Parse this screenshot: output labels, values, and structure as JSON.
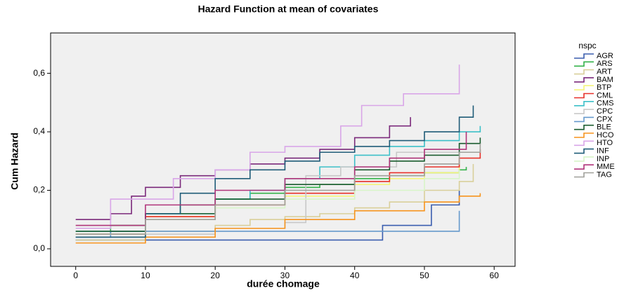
{
  "chart_data": {
    "type": "step",
    "title": "Hazard Function at mean of covariates",
    "x_label": "durée chomage",
    "y_label": "Cum Hazard",
    "legend_title": "nspc",
    "legend_position": "right",
    "xlim": [
      -3.6,
      63
    ],
    "ylim": [
      -0.06,
      0.738
    ],
    "xticks": [
      0,
      10,
      20,
      30,
      40,
      50,
      60
    ],
    "yticks": [
      {
        "value": 0,
        "label": "0,0"
      },
      {
        "value": 0.2,
        "label": "0,2"
      },
      {
        "value": 0.4,
        "label": "0,4"
      },
      {
        "value": 0.6,
        "label": "0,6"
      }
    ],
    "series": [
      {
        "name": "AGR",
        "color": "#3a5dae",
        "x": [
          0,
          44,
          51,
          55
        ],
        "values": [
          0.03,
          0.08,
          0.15,
          0.2
        ]
      },
      {
        "name": "ARS",
        "color": "#33b24a",
        "x": [
          0,
          5,
          10,
          15,
          20,
          25,
          30,
          35,
          40,
          45,
          50,
          55,
          56
        ],
        "values": [
          0.05,
          0.08,
          0.12,
          0.15,
          0.17,
          0.19,
          0.21,
          0.22,
          0.24,
          0.25,
          0.26,
          0.27,
          0.28
        ]
      },
      {
        "name": "ART",
        "color": "#d9cf9a",
        "x": [
          0,
          10,
          20,
          25,
          30,
          35,
          40,
          45,
          50,
          55,
          57
        ],
        "values": [
          0.03,
          0.06,
          0.08,
          0.1,
          0.11,
          0.12,
          0.14,
          0.16,
          0.2,
          0.23,
          0.29
        ]
      },
      {
        "name": "BAM",
        "color": "#7b2a7b",
        "x": [
          0,
          5,
          8,
          10,
          15,
          20,
          25,
          30,
          35,
          40,
          45,
          48
        ],
        "values": [
          0.1,
          0.12,
          0.18,
          0.21,
          0.25,
          0.27,
          0.29,
          0.31,
          0.34,
          0.38,
          0.42,
          0.45
        ]
      },
      {
        "name": "BTP",
        "color": "#f5f57a",
        "x": [
          0,
          10,
          20,
          30,
          40,
          45,
          50,
          55
        ],
        "values": [
          0.05,
          0.11,
          0.15,
          0.18,
          0.22,
          0.24,
          0.26,
          0.3
        ]
      },
      {
        "name": "CML",
        "color": "#e8312a",
        "x": [
          0,
          10,
          20,
          30,
          40,
          45,
          50,
          55,
          58
        ],
        "values": [
          0.05,
          0.11,
          0.15,
          0.19,
          0.23,
          0.26,
          0.28,
          0.31,
          0.34
        ]
      },
      {
        "name": "CMS",
        "color": "#3cc0c8",
        "x": [
          0,
          10,
          20,
          25,
          30,
          35,
          40,
          45,
          50,
          55,
          58
        ],
        "values": [
          0.06,
          0.12,
          0.17,
          0.2,
          0.24,
          0.28,
          0.32,
          0.35,
          0.37,
          0.4,
          0.42
        ]
      },
      {
        "name": "CPC",
        "color": "#c8c8c8",
        "x": [
          0,
          10,
          20,
          30,
          33,
          38,
          46,
          55
        ],
        "values": [
          0.04,
          0.05,
          0.07,
          0.09,
          0.25,
          0.28,
          0.33,
          0.36
        ]
      },
      {
        "name": "CPX",
        "color": "#6699cc",
        "x": [
          0,
          5,
          55
        ],
        "values": [
          0.04,
          0.06,
          0.13
        ]
      },
      {
        "name": "BLE",
        "color": "#1a5c2e",
        "x": [
          0,
          10,
          20,
          30,
          40,
          45,
          50,
          55,
          58
        ],
        "values": [
          0.06,
          0.12,
          0.17,
          0.22,
          0.27,
          0.3,
          0.32,
          0.36,
          0.38
        ]
      },
      {
        "name": "HCO",
        "color": "#f7941d",
        "x": [
          0,
          10,
          20,
          30,
          40,
          50,
          55,
          58
        ],
        "values": [
          0.02,
          0.04,
          0.07,
          0.1,
          0.13,
          0.16,
          0.18,
          0.19
        ]
      },
      {
        "name": "HTO",
        "color": "#d9a6e8",
        "x": [
          0,
          5,
          14,
          20,
          25,
          30,
          38,
          41,
          47,
          55
        ],
        "values": [
          0.07,
          0.17,
          0.24,
          0.27,
          0.33,
          0.35,
          0.42,
          0.49,
          0.53,
          0.63
        ]
      },
      {
        "name": "INF",
        "color": "#1f5c78",
        "x": [
          0,
          10,
          15,
          20,
          25,
          30,
          35,
          40,
          45,
          50,
          55,
          57
        ],
        "values": [
          0.04,
          0.12,
          0.19,
          0.24,
          0.27,
          0.3,
          0.33,
          0.35,
          0.37,
          0.4,
          0.45,
          0.49
        ]
      },
      {
        "name": "INP",
        "color": "#d8f5c8",
        "x": [
          0,
          10,
          20,
          30,
          40,
          50,
          55
        ],
        "values": [
          0.05,
          0.1,
          0.14,
          0.17,
          0.2,
          0.24,
          0.27
        ]
      },
      {
        "name": "MME",
        "color": "#b0347a",
        "x": [
          0,
          10,
          20,
          30,
          40,
          45,
          50,
          56
        ],
        "values": [
          0.08,
          0.15,
          0.2,
          0.24,
          0.28,
          0.31,
          0.34,
          0.4
        ]
      },
      {
        "name": "TAG",
        "color": "#a0a09a",
        "x": [
          0,
          10,
          20,
          30,
          40,
          50,
          55,
          58
        ],
        "values": [
          0.05,
          0.1,
          0.15,
          0.2,
          0.25,
          0.29,
          0.33,
          0.36
        ]
      }
    ]
  }
}
